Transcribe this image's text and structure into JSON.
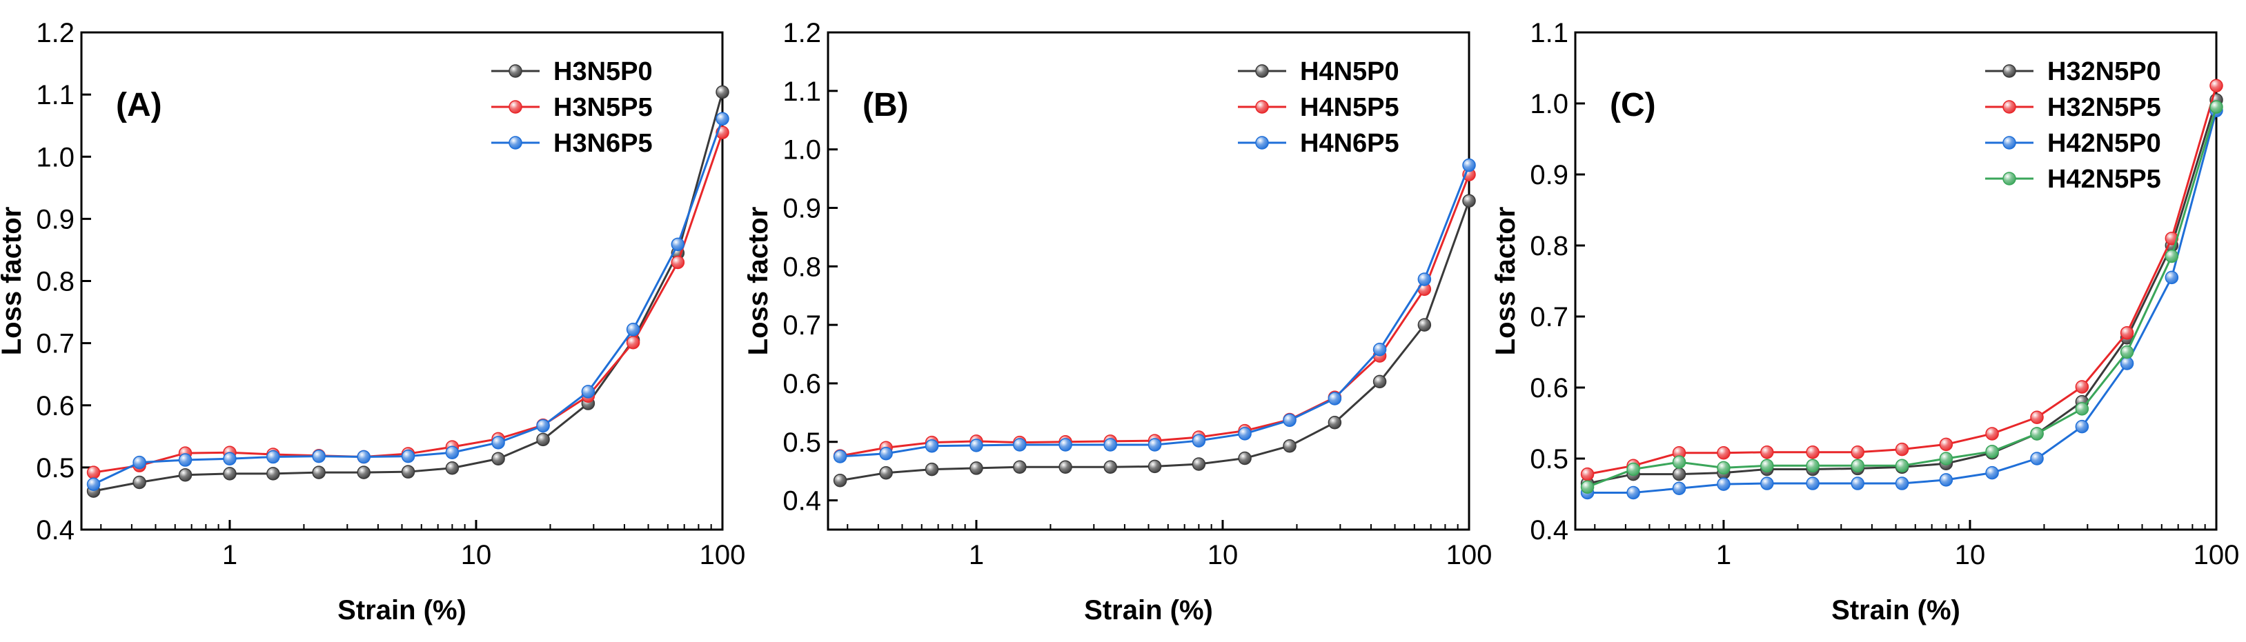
{
  "chart_data": [
    {
      "type": "line",
      "panel_label": "(A)",
      "xlabel": "Strain (%)",
      "ylabel": "Loss factor",
      "xscale": "log",
      "xlim": [
        0.25,
        100
      ],
      "ylim": [
        0.4,
        1.2
      ],
      "x_ticks": [
        1,
        10,
        100
      ],
      "x_tick_labels": [
        "1",
        "10",
        "100"
      ],
      "y_ticks": [
        0.4,
        0.5,
        0.6,
        0.7,
        0.8,
        0.9,
        1.0,
        1.1,
        1.2
      ],
      "y_tick_labels": [
        "0.4",
        "0.5",
        "0.6",
        "0.7",
        "0.8",
        "0.9",
        "1.0",
        "1.1",
        "1.2"
      ],
      "legend_position": "top-right",
      "x": [
        0.28,
        0.43,
        0.66,
        1.0,
        1.5,
        2.3,
        3.5,
        5.3,
        8.0,
        12.3,
        18.7,
        28.5,
        43.4,
        65.9,
        100
      ],
      "series": [
        {
          "name": "H3N5P0",
          "color": "#3a3a3a",
          "values": [
            0.462,
            0.476,
            0.488,
            0.49,
            0.49,
            0.492,
            0.492,
            0.493,
            0.499,
            0.514,
            0.545,
            0.603,
            0.705,
            0.845,
            1.104
          ]
        },
        {
          "name": "H3N5P5",
          "color": "#e8272a",
          "values": [
            0.492,
            0.503,
            0.523,
            0.524,
            0.521,
            0.519,
            0.517,
            0.522,
            0.533,
            0.546,
            0.568,
            0.615,
            0.701,
            0.83,
            1.039
          ]
        },
        {
          "name": "H3N6P5",
          "color": "#1f6fd8",
          "values": [
            0.473,
            0.508,
            0.512,
            0.514,
            0.517,
            0.518,
            0.517,
            0.518,
            0.524,
            0.54,
            0.567,
            0.622,
            0.722,
            0.859,
            1.061
          ]
        }
      ]
    },
    {
      "type": "line",
      "panel_label": "(B)",
      "xlabel": "Strain (%)",
      "ylabel": "Loss factor",
      "xscale": "log",
      "xlim": [
        0.25,
        100
      ],
      "ylim": [
        0.35,
        1.2
      ],
      "x_ticks": [
        1,
        10,
        100
      ],
      "x_tick_labels": [
        "1",
        "10",
        "100"
      ],
      "y_ticks": [
        0.4,
        0.5,
        0.6,
        0.7,
        0.8,
        0.9,
        1.0,
        1.1,
        1.2
      ],
      "y_tick_labels": [
        "0.4",
        "0.5",
        "0.6",
        "0.7",
        "0.8",
        "0.9",
        "1.0",
        "1.1",
        "1.2"
      ],
      "legend_position": "top-right",
      "x": [
        0.28,
        0.43,
        0.66,
        1.0,
        1.5,
        2.3,
        3.5,
        5.3,
        8.0,
        12.3,
        18.7,
        28.5,
        43.4,
        65.9,
        100
      ],
      "series": [
        {
          "name": "H4N5P0",
          "color": "#3a3a3a",
          "values": [
            0.434,
            0.447,
            0.453,
            0.455,
            0.457,
            0.457,
            0.457,
            0.458,
            0.462,
            0.472,
            0.493,
            0.533,
            0.603,
            0.7,
            0.912
          ]
        },
        {
          "name": "H4N5P5",
          "color": "#e8272a",
          "values": [
            0.476,
            0.49,
            0.499,
            0.501,
            0.499,
            0.5,
            0.501,
            0.502,
            0.508,
            0.519,
            0.538,
            0.576,
            0.647,
            0.761,
            0.957
          ]
        },
        {
          "name": "H4N6P5",
          "color": "#1f6fd8",
          "values": [
            0.475,
            0.48,
            0.493,
            0.494,
            0.495,
            0.495,
            0.495,
            0.495,
            0.502,
            0.514,
            0.537,
            0.574,
            0.658,
            0.778,
            0.973
          ]
        }
      ]
    },
    {
      "type": "line",
      "panel_label": "(C)",
      "xlabel": "Strain (%)",
      "ylabel": "Loss factor",
      "xscale": "log",
      "xlim": [
        0.25,
        100
      ],
      "ylim": [
        0.4,
        1.1
      ],
      "x_ticks": [
        1,
        10,
        100
      ],
      "x_tick_labels": [
        "1",
        "10",
        "100"
      ],
      "y_ticks": [
        0.4,
        0.5,
        0.6,
        0.7,
        0.8,
        0.9,
        1.0,
        1.1
      ],
      "y_tick_labels": [
        "0.4",
        "0.5",
        "0.6",
        "0.7",
        "0.8",
        "0.9",
        "1.0",
        "1.1"
      ],
      "legend_position": "top-right",
      "x": [
        0.28,
        0.43,
        0.66,
        1.0,
        1.5,
        2.3,
        3.5,
        5.3,
        8.0,
        12.3,
        18.7,
        28.5,
        43.4,
        65.9,
        100
      ],
      "series": [
        {
          "name": "H32N5P0",
          "color": "#3a3a3a",
          "values": [
            0.465,
            0.478,
            0.478,
            0.48,
            0.485,
            0.485,
            0.486,
            0.488,
            0.493,
            0.508,
            0.535,
            0.58,
            0.67,
            0.8,
            1.005
          ]
        },
        {
          "name": "H32N5P5",
          "color": "#e8272a",
          "values": [
            0.478,
            0.49,
            0.508,
            0.508,
            0.509,
            0.509,
            0.509,
            0.513,
            0.52,
            0.535,
            0.558,
            0.601,
            0.677,
            0.81,
            1.025
          ]
        },
        {
          "name": "H42N5P0",
          "color": "#1f6fd8",
          "values": [
            0.452,
            0.452,
            0.458,
            0.464,
            0.465,
            0.465,
            0.465,
            0.465,
            0.47,
            0.48,
            0.5,
            0.545,
            0.634,
            0.755,
            0.99
          ]
        },
        {
          "name": "H42N5P5",
          "color": "#3aa65a",
          "values": [
            0.46,
            0.485,
            0.495,
            0.487,
            0.49,
            0.49,
            0.49,
            0.49,
            0.5,
            0.51,
            0.535,
            0.57,
            0.65,
            0.785,
            0.995
          ]
        }
      ]
    }
  ]
}
